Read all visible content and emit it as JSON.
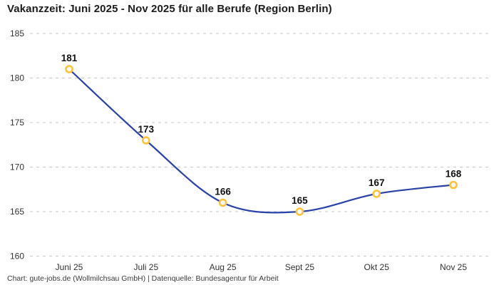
{
  "title": "Vakanzzeit: Juni 2025 - Nov 2025 für alle Berufe (Region Berlin)",
  "footer": "Chart: gute-jobs.de (Wollmilchsau GmbH) | Datenquelle: Bundesagentur für Arbeit",
  "chart_data": {
    "type": "line",
    "title": "Vakanzzeit: Juni 2025 - Nov 2025 für alle Berufe (Region Berlin)",
    "categories": [
      "Juni 25",
      "Juli 25",
      "Aug 25",
      "Sept 25",
      "Okt 25",
      "Nov 25"
    ],
    "values": [
      181,
      173,
      166,
      165,
      167,
      168
    ],
    "data_labels": [
      "181",
      "173",
      "166",
      "165",
      "167",
      "168"
    ],
    "xlabel": "",
    "ylabel": "",
    "ylim": [
      160,
      185
    ],
    "yticks": [
      160,
      165,
      170,
      175,
      180,
      185
    ],
    "grid": "horizontal-dashed",
    "legend": "none",
    "line_style": "smooth",
    "line_color": "#2a41a8",
    "marker_color": "#ffc233",
    "marker_fill": "#ffffff",
    "source_note": "Chart: gute-jobs.de (Wollmilchsau GmbH) | Datenquelle: Bundesagentur für Arbeit"
  }
}
